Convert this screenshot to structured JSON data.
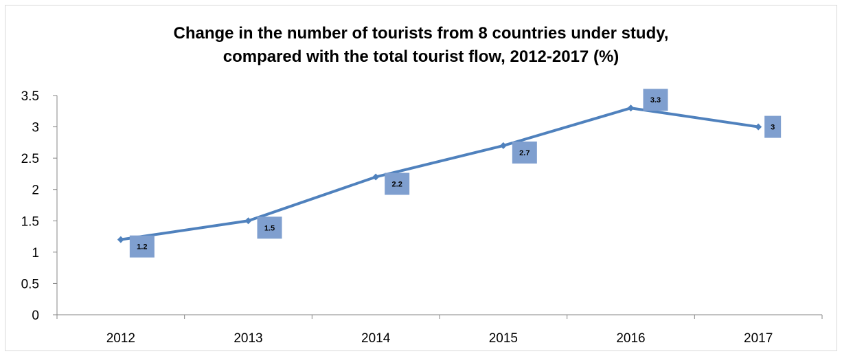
{
  "chart_data": {
    "type": "line",
    "title_line1": "Change in the number of tourists from 8 countries under study,",
    "title_line2": "compared with the total tourist flow, 2012-2017 (%)",
    "categories": [
      "2012",
      "2013",
      "2014",
      "2015",
      "2016",
      "2017"
    ],
    "series": [
      {
        "values": [
          1.2,
          1.5,
          2.2,
          2.7,
          3.3,
          3
        ]
      }
    ],
    "data_labels": [
      "1.2",
      "1.5",
      "2.2",
      "2.7",
      "3.3",
      "3"
    ],
    "y_ticks": [
      "0",
      "0.5",
      "1",
      "1.5",
      "2",
      "2.5",
      "3",
      "3.5"
    ],
    "ylim": [
      0,
      3.5
    ],
    "grid": false,
    "legend": false,
    "colors": {
      "line": "#4f81bd",
      "label_box": "#7f9fcf",
      "axis": "#868686"
    }
  }
}
